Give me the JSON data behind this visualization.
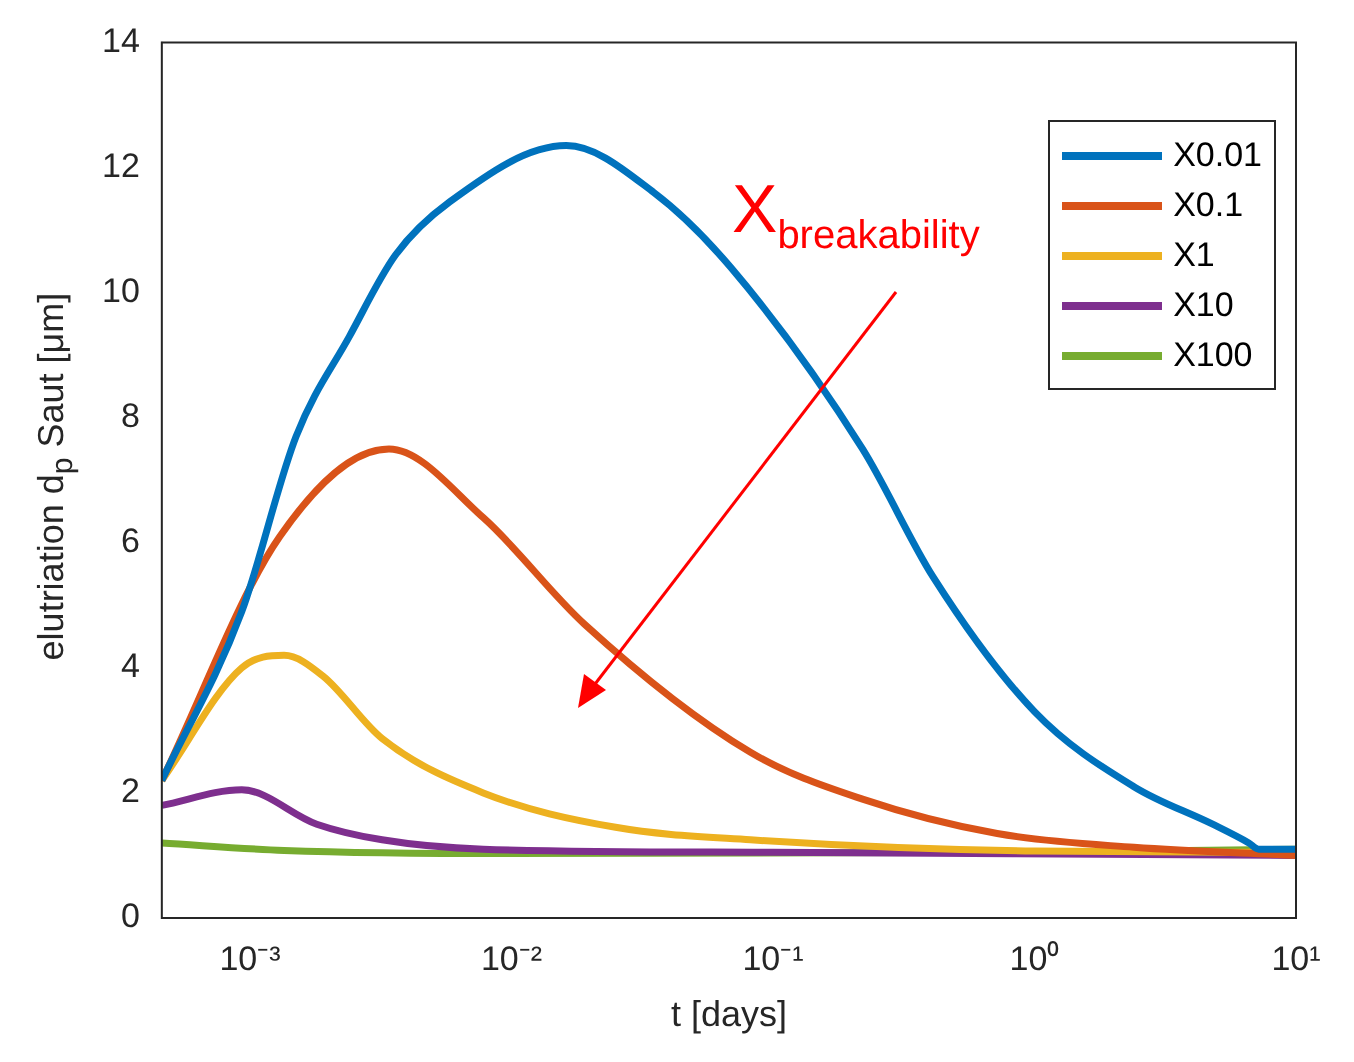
{
  "chart_data": {
    "type": "line",
    "xlabel": "t [days]",
    "ylabel": "elutriation d$_{p}$ Saut [μm]",
    "log": "x",
    "xlim": [
      0.00046,
      10
    ],
    "xticks": [
      {
        "value": 0.001,
        "label": "10⁻³"
      },
      {
        "value": 0.01,
        "label": "10⁻²"
      },
      {
        "value": 0.1,
        "label": "10⁻¹"
      },
      {
        "value": 1,
        "label": "10⁰"
      },
      {
        "value": 10,
        "label": "10¹"
      }
    ],
    "ylim": [
      0,
      14
    ],
    "yticks": [
      0,
      2,
      4,
      6,
      8,
      10,
      12,
      14
    ],
    "grid": false,
    "legend": "top right",
    "marker": "none",
    "line_style": "solid",
    "annotations": [
      "X$_{breakability}$"
    ],
    "series": [
      {
        "name": "X0.01",
        "color": "#0072bd",
        "x": [
          0.00046,
          0.00093,
          0.0015,
          0.0024,
          0.0036,
          0.0058,
          0.0162,
          0.035,
          0.069,
          0.22,
          0.41,
          1,
          2.4,
          4.8,
          6.6,
          7.2,
          10
        ],
        "values": [
          2.2,
          4.9,
          7.7,
          9.3,
          10.6,
          11.45,
          12.35,
          11.6,
          10.4,
          7.5,
          5.45,
          3.3,
          2.1,
          1.5,
          1.2,
          1.1,
          1.1
        ]
      },
      {
        "name": "X0.1",
        "color": "#d95319",
        "x": [
          0.00046,
          0.0013,
          0.0034,
          0.0078,
          0.019,
          0.082,
          0.22,
          0.72,
          2.4,
          10
        ],
        "values": [
          2.2,
          6.1,
          7.5,
          6.4,
          4.7,
          2.65,
          1.9,
          1.35,
          1.13,
          1.0
        ]
      },
      {
        "name": "X1",
        "color": "#edb120",
        "x": [
          0.00046,
          0.00093,
          0.00135,
          0.0019,
          0.0032,
          0.0078,
          0.025,
          0.082,
          1,
          10
        ],
        "values": [
          2.2,
          4.0,
          4.2,
          3.87,
          2.87,
          2.0,
          1.45,
          1.25,
          1.07,
          1.05
        ]
      },
      {
        "name": "X10",
        "color": "#7e2f8e",
        "x": [
          0.00046,
          0.00093,
          0.0018,
          0.0032,
          0.0078,
          0.1,
          10
        ],
        "values": [
          1.8,
          2.05,
          1.5,
          1.25,
          1.1,
          1.05,
          1.0
        ]
      },
      {
        "name": "X100",
        "color": "#77ac30",
        "x": [
          0.00046,
          0.00135,
          0.01,
          1,
          10
        ],
        "values": [
          1.2,
          1.08,
          1.03,
          1.05,
          1.1
        ]
      }
    ]
  }
}
